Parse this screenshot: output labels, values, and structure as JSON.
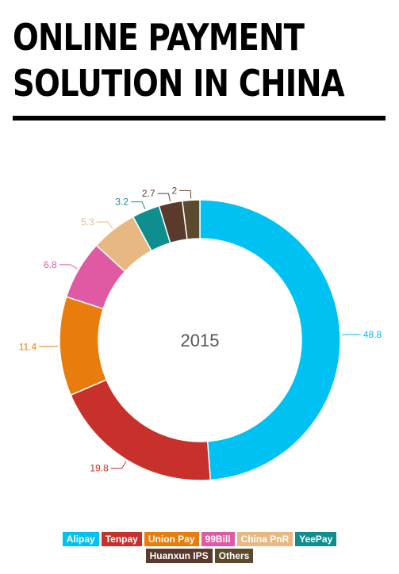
{
  "title_line1": "ONLINE PAYMENT",
  "title_line2": "SOLUTION IN CHINA",
  "chart_data": {
    "type": "pie",
    "donut": true,
    "center_label": "2015",
    "categories": [
      "Alipay",
      "Tenpay",
      "Union Pay",
      "99Bill",
      "China PnR",
      "YeePay",
      "Huanxun IPS",
      "Others"
    ],
    "values": [
      48.8,
      19.8,
      11.4,
      6.8,
      5.3,
      3.2,
      2.7,
      2
    ],
    "value_labels": [
      "48.8",
      "19.8",
      "11.4",
      "6.8",
      "5.3",
      "3.2",
      "2.7",
      "2"
    ],
    "colors": [
      "#00C2F2",
      "#C8302B",
      "#E87D0D",
      "#E05AA3",
      "#E8B882",
      "#0E8E8E",
      "#5A3A2C",
      "#5B4A2E"
    ],
    "legend": "bottom",
    "legend_rows": [
      [
        "Alipay",
        "Tenpay",
        "Union Pay",
        "99Bill",
        "China PnR",
        "YeePay"
      ],
      [
        "Huanxun IPS",
        "Others"
      ]
    ]
  }
}
